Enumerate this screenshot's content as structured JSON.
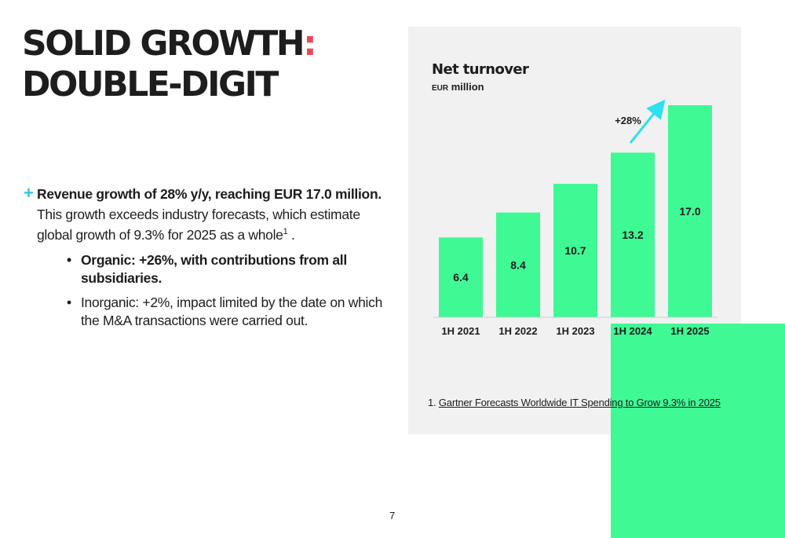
{
  "title": {
    "line1": "SOLID GROWTH",
    "colon": ":",
    "line2": "DOUBLE-DIGIT"
  },
  "bullets": {
    "plus_icon": "+",
    "main_strong": "Revenue growth of 28% y/y, reaching EUR 17.0 million.",
    "main_body": "This growth exceeds industry forecasts, which estimate global growth of 9.3% for 2025 as a whole",
    "footnote_ref": "1",
    "main_end": " .",
    "sub": [
      {
        "dot": "•",
        "text": "Organic: +26%, with contributions from all subsidiaries."
      },
      {
        "dot": "•",
        "text": "Inorganic: +2%, impact limited by the date on which the M&A transactions were carried out."
      }
    ]
  },
  "chart_data": {
    "type": "bar",
    "title": "Net turnover",
    "subtitle_unit_small": "EUR",
    "subtitle_unit": " million",
    "categories": [
      "1H 2021",
      "1H 2022",
      "1H 2023",
      "1H 2024",
      "1H 2025"
    ],
    "values": [
      6.4,
      8.4,
      10.7,
      13.2,
      17.0
    ],
    "value_labels": [
      "6.4",
      "8.4",
      "10.7",
      "13.2",
      "17.0"
    ],
    "ylim": [
      0,
      17.0
    ],
    "annotation": "+28%",
    "xlabel": "",
    "ylabel": "",
    "bar_color": "#3ff995",
    "arrow_color": "#2ee0f0"
  },
  "footnote": {
    "number": "1.",
    "link_text": "Gartner Forecasts Worldwide IT Spending to Grow 9.3% in 2025"
  },
  "page_number": "7",
  "colors": {
    "accent_red": "#f0465a",
    "accent_cyan": "#2ec7e6",
    "brand_green": "#3ff995",
    "panel_grey": "#f1f1f1"
  }
}
